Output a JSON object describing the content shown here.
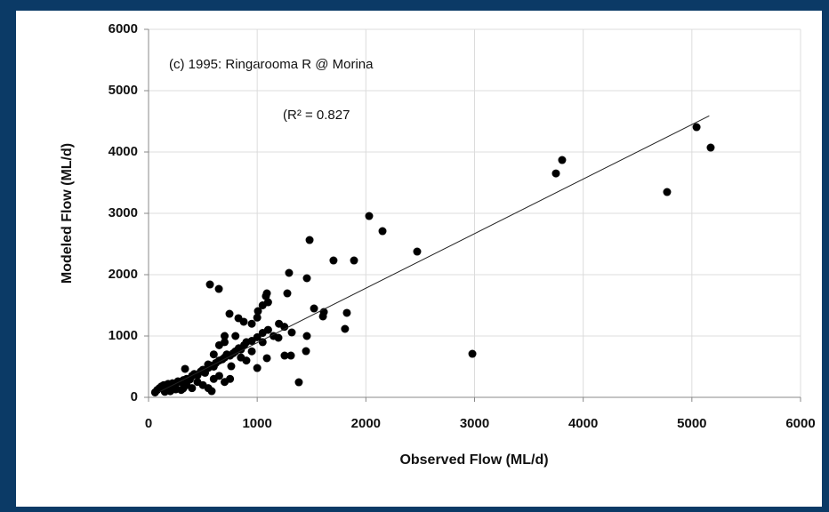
{
  "chart_data": {
    "type": "scatter",
    "annotations": [
      "(c) 1995: Ringarooma R @ Morina",
      "(R² = 0.827"
    ],
    "x_label": "Observed Flow (ML/d)",
    "y_label": "Modeled Flow (ML/d)",
    "color": "#000000",
    "grid": true,
    "xlim": [
      0,
      6000
    ],
    "xticks": [
      0,
      1000,
      2000,
      3000,
      4000,
      5000,
      6000
    ],
    "ylim": [
      0,
      6000
    ],
    "yticks": [
      0,
      1000,
      2000,
      3000,
      4000,
      5000,
      6000
    ],
    "x": [
      5043,
      5173,
      4772,
      3806,
      3749,
      2980,
      2472,
      2030,
      2153,
      1891,
      1702,
      1482,
      1293,
      1457,
      1825,
      1808,
      1613,
      1605,
      1383,
      1523,
      1277,
      1089,
      565,
      647,
      876,
      827,
      1007,
      745,
      1195,
      1318,
      1252,
      1310,
      1457,
      1449,
      1089,
      1000,
      761,
      548,
      336,
      581,
      319,
      60,
      80,
      100,
      120,
      140,
      160,
      180,
      200,
      220,
      250,
      270,
      300,
      320,
      350,
      380,
      400,
      420,
      450,
      480,
      500,
      520,
      550,
      570,
      600,
      620,
      650,
      680,
      700,
      720,
      750,
      780,
      800,
      830,
      850,
      880,
      900,
      950,
      1000,
      1050,
      1100,
      600,
      650,
      700,
      750,
      550,
      500,
      450,
      400,
      350,
      300,
      250,
      200,
      150,
      700,
      650,
      800,
      600,
      900,
      850,
      950,
      1050,
      1150,
      1000,
      950,
      1100,
      1050,
      1080,
      700,
      1200,
      1250
    ],
    "y": [
      4405,
      4072,
      3347,
      3869,
      3651,
      710,
      2376,
      2956,
      2710,
      2231,
      2231,
      2565,
      2029,
      1942,
      1377,
      1116,
      1391,
      1319,
      246,
      1449,
      1695,
      1695,
      1840,
      1768,
      1232,
      1290,
      1405,
      1362,
      971,
      1058,
      681,
      681,
      1000,
      753,
      638,
      478,
      507,
      536,
      464,
      101,
      145,
      80,
      120,
      150,
      180,
      200,
      170,
      220,
      190,
      230,
      210,
      260,
      250,
      280,
      300,
      290,
      350,
      380,
      360,
      420,
      450,
      400,
      480,
      520,
      500,
      560,
      600,
      620,
      650,
      700,
      680,
      720,
      750,
      800,
      780,
      850,
      900,
      920,
      980,
      1050,
      1100,
      300,
      350,
      250,
      300,
      150,
      200,
      250,
      150,
      200,
      120,
      130,
      100,
      90,
      900,
      850,
      1000,
      700,
      600,
      650,
      750,
      900,
      1000,
      1300,
      1200,
      1550,
      1500,
      1650,
      1000,
      1200,
      1150
    ],
    "trendline": {
      "x": [
        100,
        5160
      ],
      "y": [
        90,
        4590
      ]
    }
  }
}
